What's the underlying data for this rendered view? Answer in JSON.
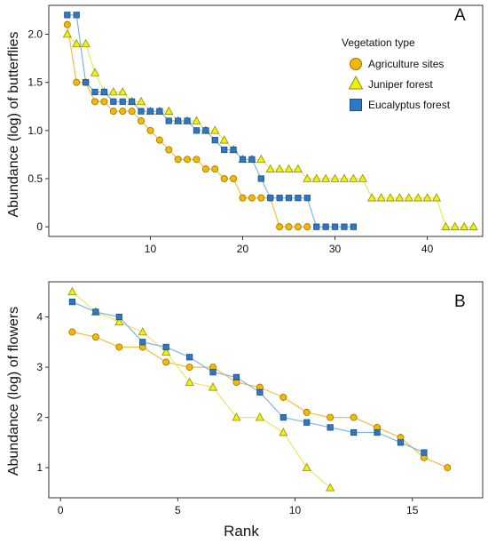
{
  "colors": {
    "agriculture_fill": "#f5b800",
    "agriculture_stroke": "#9a7200",
    "agriculture_line": "#f0c040",
    "juniper_fill": "#f2f200",
    "juniper_stroke": "#8a8a20",
    "juniper_line": "#e8e860",
    "eucalyptus_fill": "#2d78c4",
    "eucalyptus_stroke": "#1f4f80",
    "eucalyptus_line": "#7fb6e0"
  },
  "chart_data": [
    {
      "type": "scatter",
      "panel_label": "A",
      "xlabel": "",
      "ylabel": "Abundance (log) of butterflies",
      "xlim": [
        -1,
        46
      ],
      "ylim": [
        -0.1,
        2.3
      ],
      "xticks": [
        "10",
        "20",
        "30",
        "40"
      ],
      "yticks": [
        "0",
        "0.5",
        "1.0",
        "1.5",
        "2.0"
      ],
      "legend": {
        "title": "Vegetation type",
        "position": "top-right",
        "entries": [
          "Agriculture sites",
          "Juniper forest",
          "Eucalyptus forest"
        ]
      },
      "series": [
        {
          "name": "Agriculture sites",
          "marker": "circle",
          "x": [
            1,
            2,
            3,
            4,
            5,
            6,
            7,
            8,
            9,
            10,
            11,
            12,
            13,
            14,
            15,
            16,
            17,
            18,
            19,
            20,
            21,
            22,
            23,
            24,
            25,
            26,
            27
          ],
          "y": [
            2.1,
            1.5,
            1.5,
            1.3,
            1.3,
            1.2,
            1.2,
            1.2,
            1.1,
            1.0,
            0.9,
            0.8,
            0.7,
            0.7,
            0.7,
            0.6,
            0.6,
            0.5,
            0.5,
            0.3,
            0.3,
            0.3,
            0.3,
            0.0,
            0.0,
            0.0,
            0.0
          ]
        },
        {
          "name": "Juniper forest",
          "marker": "triangle",
          "x": [
            1,
            2,
            3,
            4,
            5,
            6,
            7,
            8,
            9,
            10,
            11,
            12,
            13,
            14,
            15,
            16,
            17,
            18,
            19,
            20,
            21,
            22,
            23,
            24,
            25,
            26,
            27,
            28,
            29,
            30,
            31,
            32,
            33,
            34,
            35,
            36,
            37,
            38,
            39,
            40,
            41,
            42,
            43,
            44,
            45
          ],
          "y": [
            2.0,
            1.9,
            1.9,
            1.6,
            1.4,
            1.4,
            1.4,
            1.3,
            1.3,
            1.2,
            1.2,
            1.2,
            1.1,
            1.1,
            1.1,
            1.0,
            1.0,
            0.9,
            0.8,
            0.7,
            0.7,
            0.7,
            0.6,
            0.6,
            0.6,
            0.6,
            0.5,
            0.5,
            0.5,
            0.5,
            0.5,
            0.5,
            0.5,
            0.3,
            0.3,
            0.3,
            0.3,
            0.3,
            0.3,
            0.3,
            0.3,
            0.0,
            0.0,
            0.0,
            0.0
          ]
        },
        {
          "name": "Eucalyptus forest",
          "marker": "square",
          "x": [
            1,
            2,
            3,
            4,
            5,
            6,
            7,
            8,
            9,
            10,
            11,
            12,
            13,
            14,
            15,
            16,
            17,
            18,
            19,
            20,
            21,
            22,
            23,
            24,
            25,
            26,
            27,
            28,
            29,
            30,
            31,
            32
          ],
          "y": [
            2.2,
            2.2,
            1.5,
            1.4,
            1.4,
            1.3,
            1.3,
            1.3,
            1.2,
            1.2,
            1.2,
            1.1,
            1.1,
            1.1,
            1.0,
            1.0,
            0.9,
            0.8,
            0.8,
            0.7,
            0.7,
            0.5,
            0.3,
            0.3,
            0.3,
            0.3,
            0.3,
            0.0,
            0.0,
            0.0,
            0.0,
            0.0
          ]
        }
      ]
    },
    {
      "type": "scatter",
      "panel_label": "B",
      "xlabel": "Rank",
      "ylabel": "Abundance (log) of flowers",
      "xlim": [
        -0.5,
        18
      ],
      "ylim": [
        0.4,
        4.7
      ],
      "xticks": [
        "0",
        "5",
        "10",
        "15"
      ],
      "yticks": [
        "1",
        "2",
        "3",
        "4"
      ],
      "series": [
        {
          "name": "Agriculture sites",
          "marker": "circle",
          "x": [
            0.5,
            1.5,
            2.5,
            3.5,
            4.5,
            5.5,
            6.5,
            7.5,
            8.5,
            9.5,
            10.5,
            11.5,
            12.5,
            13.5,
            14.5,
            15.5,
            16.5
          ],
          "y": [
            3.7,
            3.6,
            3.4,
            3.4,
            3.1,
            3.0,
            3.0,
            2.7,
            2.6,
            2.4,
            2.1,
            2.0,
            2.0,
            1.8,
            1.6,
            1.2,
            1.0
          ]
        },
        {
          "name": "Juniper forest",
          "marker": "triangle",
          "x": [
            0.5,
            1.5,
            2.5,
            3.5,
            4.5,
            5.5,
            6.5,
            7.5,
            8.5,
            9.5,
            10.5,
            11.5
          ],
          "y": [
            4.5,
            4.1,
            3.9,
            3.7,
            3.3,
            2.7,
            2.6,
            2.0,
            2.0,
            1.7,
            1.0,
            0.6
          ]
        },
        {
          "name": "Eucalyptus forest",
          "marker": "square",
          "x": [
            0.5,
            1.5,
            2.5,
            3.5,
            4.5,
            5.5,
            6.5,
            7.5,
            8.5,
            9.5,
            10.5,
            11.5,
            12.5,
            13.5,
            14.5,
            15.5
          ],
          "y": [
            4.3,
            4.1,
            4.0,
            3.5,
            3.4,
            3.2,
            2.9,
            2.8,
            2.5,
            2.0,
            1.9,
            1.8,
            1.7,
            1.7,
            1.5,
            1.3
          ]
        }
      ]
    }
  ]
}
